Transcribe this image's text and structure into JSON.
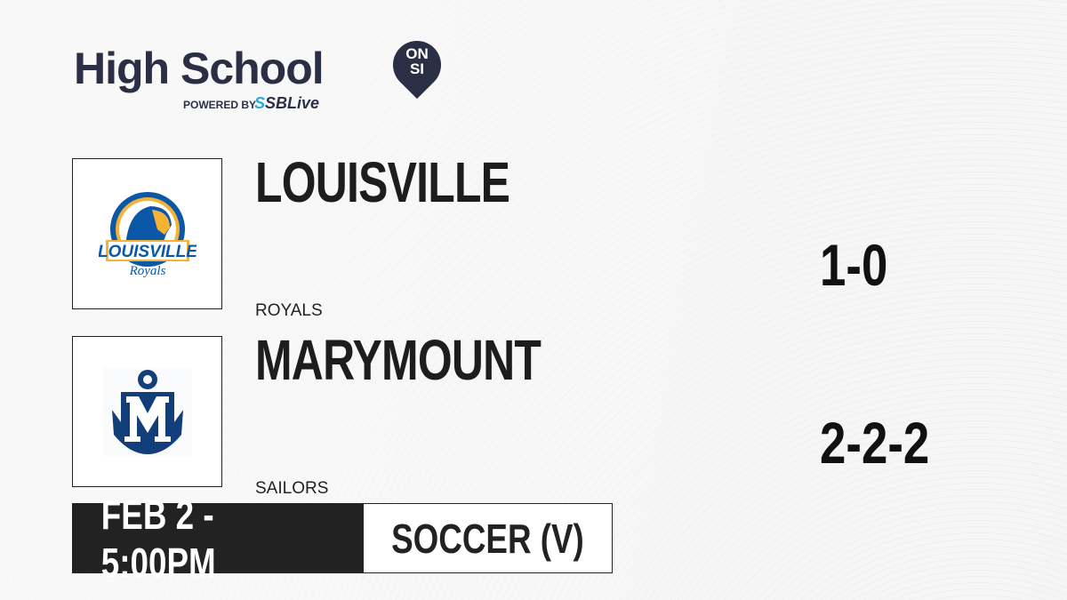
{
  "brand": {
    "title": "High School",
    "badge_top": "ON",
    "badge_bottom": "SI",
    "powered_by": "POWERED BY",
    "partner_prefix": "S",
    "partner": "SBLive"
  },
  "teams": [
    {
      "name": "LOUISVILLE",
      "mascot": "ROYALS",
      "record": "1-0",
      "logo_text": "LOUISVILLE",
      "logo_script": "Royals",
      "colors": {
        "primary": "#0b57a8",
        "secondary": "#f5b335"
      }
    },
    {
      "name": "MARYMOUNT",
      "mascot": "SAILORS",
      "record": "2-2-2",
      "logo_text": "M",
      "colors": {
        "primary": "#123f7a"
      }
    }
  ],
  "game": {
    "datetime": "FEB 2 - 5:00PM",
    "sport": "SOCCER (V)"
  }
}
